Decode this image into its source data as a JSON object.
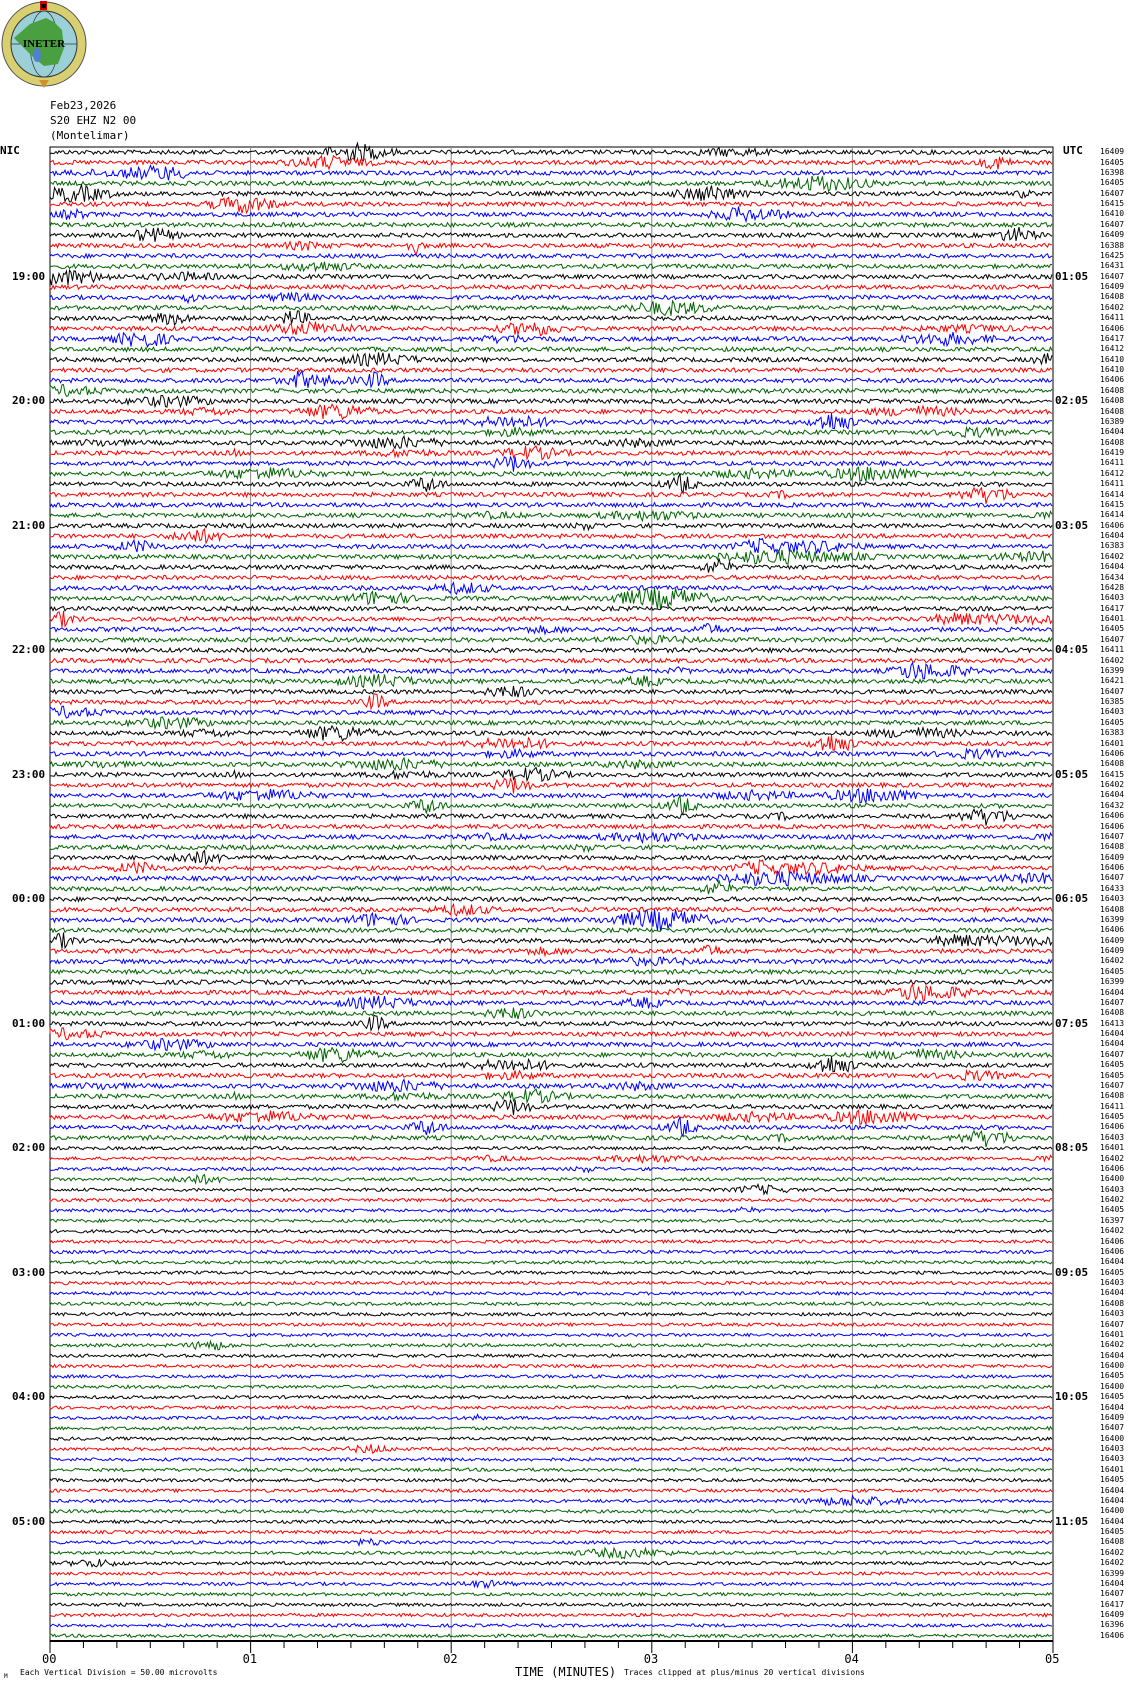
{
  "logo": {
    "text": "INETER"
  },
  "header": {
    "date": "Feb23,2026",
    "station": "S20 EHZ N2 00",
    "location": "(Montelimar)"
  },
  "chart_data": {
    "type": "line",
    "subtype": "helicorder",
    "left_timezone": "NIC",
    "right_timezone": "UTC",
    "left_hour_labels": [
      "19:00",
      "20:00",
      "21:00",
      "22:00",
      "23:00",
      "00:00",
      "01:00",
      "02:00",
      "03:00",
      "04:00",
      "05:00"
    ],
    "right_hour_labels": [
      "01:05",
      "02:05",
      "03:05",
      "04:05",
      "05:05",
      "06:05",
      "07:05",
      "08:05",
      "09:05",
      "10:05",
      "11:05"
    ],
    "rows_per_hour": 12,
    "trace_colors": [
      "#000000",
      "#ff0000",
      "#0000ff",
      "#006400"
    ],
    "x_ticks": [
      "00",
      "01",
      "02",
      "03",
      "04",
      "05"
    ],
    "xlim": [
      0,
      5
    ],
    "xlabel": "TIME (MINUTES)",
    "grid": "vertical lines every minute",
    "trace_values": [
      16409,
      16405,
      16398,
      16405,
      16407,
      16415,
      16410,
      16407,
      16409,
      16388,
      16425,
      16431,
      16407,
      16409,
      16408,
      16402,
      16411,
      16406,
      16417,
      16412,
      16410,
      16410,
      16406,
      16408,
      16408,
      16408,
      16389,
      16404,
      16408,
      16419,
      16411,
      16412,
      16411,
      16414,
      16415,
      16414,
      16406,
      16404,
      16383,
      16402,
      16404,
      16434,
      16428,
      16403,
      16417,
      16401,
      16405,
      16407,
      16411,
      16402,
      16399,
      16421,
      16407,
      16385,
      16403,
      16405,
      16383,
      16401,
      16406,
      16408,
      16415,
      16402,
      16404,
      16432,
      16406,
      16406,
      16407,
      16408,
      16409,
      16406,
      16407,
      16433,
      16403,
      16408,
      16399,
      16406,
      16409,
      16409,
      16402,
      16405,
      16399,
      16404,
      16407,
      16408,
      16413,
      16404,
      16404,
      16407,
      16405,
      16405,
      16407,
      16408,
      16411,
      16405,
      16406,
      16403,
      16401,
      16402,
      16406,
      16400,
      16403,
      16402,
      16405,
      16397,
      16402,
      16406,
      16406,
      16404,
      16405,
      16403,
      16404,
      16408,
      16403,
      16407,
      16401,
      16402,
      16404,
      16400,
      16405,
      16400,
      16405,
      16404,
      16409,
      16407,
      16400,
      16403,
      16403,
      16401,
      16405,
      16404,
      16404,
      16400,
      16404,
      16405,
      16408,
      16402,
      16402,
      16399,
      16404,
      16407,
      16417,
      16409,
      16396,
      16406
    ]
  },
  "footer": {
    "corner_mark": "M",
    "scale_note": "Each Vertical Division =    50.00 microvolts",
    "clip_note": "Traces clipped at plus/minus 20 vertical divisions"
  }
}
